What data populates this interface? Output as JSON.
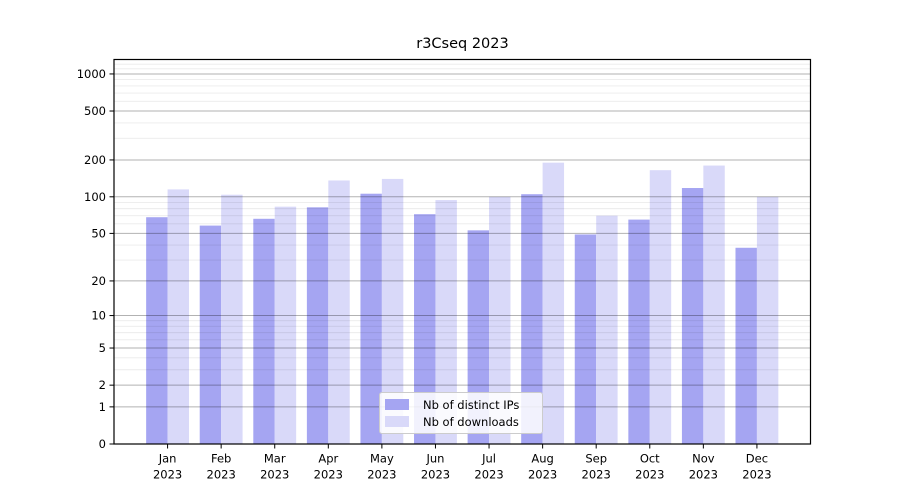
{
  "figure": {
    "title": "r3Cseq 2023"
  },
  "legend": {
    "items": [
      {
        "label": "Nb of distinct IPs",
        "color": "#a5a5f2"
      },
      {
        "label": "Nb of downloads",
        "color": "#d9d9f9"
      }
    ]
  },
  "chart_data": {
    "type": "bar",
    "title": "r3Cseq 2023",
    "categories": [
      "Jan",
      "Feb",
      "Mar",
      "Apr",
      "May",
      "Jun",
      "Jul",
      "Aug",
      "Sep",
      "Oct",
      "Nov",
      "Dec"
    ],
    "category_year": "2023",
    "series": [
      {
        "name": "Nb of distinct IPs",
        "color": "#a5a5f2",
        "values": [
          68,
          58,
          66,
          82,
          106,
          72,
          53,
          105,
          49,
          65,
          118,
          38
        ]
      },
      {
        "name": "Nb of downloads",
        "color": "#d9d9f9",
        "values": [
          115,
          104,
          83,
          136,
          140,
          94,
          100,
          190,
          70,
          165,
          180,
          100
        ]
      }
    ],
    "yaxis": {
      "scale": "log10(value+1)",
      "ticks": [
        0,
        1,
        2,
        5,
        10,
        20,
        50,
        100,
        200,
        500,
        1000
      ],
      "minor_gridlines": [
        3,
        4,
        6,
        7,
        8,
        9,
        30,
        40,
        60,
        70,
        80,
        90,
        300,
        400,
        600,
        700,
        800,
        900,
        1100,
        1200,
        1300
      ],
      "max": 1310
    },
    "grid": true,
    "grid_above_bars": true,
    "legend_position": "lower center",
    "ylim": [
      0,
      1310
    ]
  },
  "colors": {
    "background": "#ffffff",
    "frame": "#000000",
    "text": "#000000",
    "major_grid": "rgba(0,0,0,0.30)",
    "minor_grid": "rgba(0,0,0,0.08)"
  }
}
